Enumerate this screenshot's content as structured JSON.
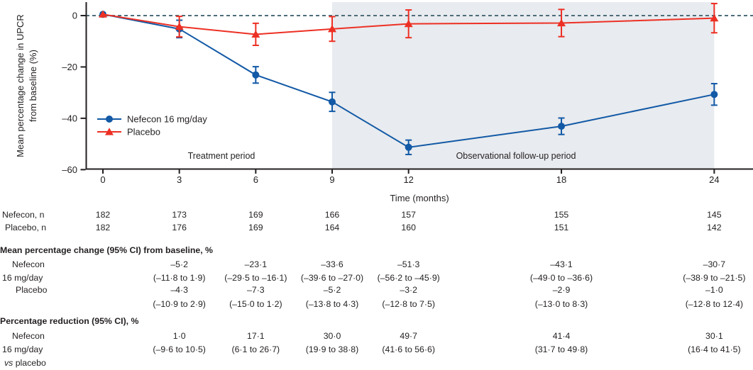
{
  "figure": {
    "y_axis": {
      "label_line1": "Mean percentage change in UPCR",
      "label_line2": "from baseline (%)",
      "ticks": [
        {
          "value": 0,
          "label": "0"
        },
        {
          "value": -20,
          "label": "–20"
        },
        {
          "value": -40,
          "label": "–40"
        },
        {
          "value": -60,
          "label": "–60"
        }
      ]
    },
    "x_axis": {
      "label": "Time (months)",
      "ticks": [
        {
          "value": 0,
          "label": "0"
        },
        {
          "value": 3,
          "label": "3"
        },
        {
          "value": 6,
          "label": "6"
        },
        {
          "value": 9,
          "label": "9"
        },
        {
          "value": 12,
          "label": "12"
        },
        {
          "value": 18,
          "label": "18"
        },
        {
          "value": 24,
          "label": "24"
        }
      ]
    },
    "legend": [
      {
        "name": "Nefecon 16 mg/day",
        "color": "#1259a6",
        "marker": "circle"
      },
      {
        "name": "Placebo",
        "color": "#ed3024",
        "marker": "triangle"
      }
    ],
    "period_labels": {
      "treatment": "Treatment period",
      "observational": "Observational follow-up period"
    },
    "shaded_region": {
      "from_month": 9,
      "to_month": 24,
      "color": "#e8ebef"
    },
    "zero_line_color": "#4e6d79",
    "axis_color": "#231f20"
  },
  "chart_data": {
    "type": "line",
    "x": [
      0,
      3,
      6,
      9,
      12,
      18,
      24
    ],
    "series": [
      {
        "name": "Nefecon 16 mg/day",
        "color": "#1259a6",
        "marker": "circle",
        "values": [
          0.5,
          -5.2,
          -23.1,
          -33.6,
          -51.3,
          -43.1,
          -30.7
        ],
        "err": [
          0,
          3.4,
          3.2,
          3.7,
          2.8,
          3.2,
          4.2
        ]
      },
      {
        "name": "Placebo",
        "color": "#ed3024",
        "marker": "triangle",
        "values": [
          0.5,
          -4.3,
          -7.3,
          -5.2,
          -3.2,
          -2.9,
          -1.0
        ],
        "err": [
          0,
          4.0,
          4.3,
          4.8,
          5.4,
          5.3,
          5.7
        ]
      }
    ],
    "title": "",
    "xlabel": "Time (months)",
    "ylabel": "Mean percentage change in UPCR from baseline (%)",
    "ylim": [
      -60,
      5
    ],
    "grid": false,
    "legend_position": "inside-left",
    "annotations": [
      "Treatment period",
      "Observational follow-up period"
    ]
  },
  "table": {
    "rows": [
      {
        "type": "n",
        "label": "Nefecon, n",
        "values": [
          "182",
          "173",
          "169",
          "166",
          "157",
          "155",
          "145"
        ]
      },
      {
        "type": "n",
        "label": "Placebo, n",
        "values": [
          "182",
          "176",
          "169",
          "164",
          "160",
          "151",
          "142"
        ]
      },
      {
        "type": "section",
        "label": "Mean percentage change (95% CI) from baseline, %"
      },
      {
        "type": "est",
        "label_lines": [
          "Nefecon",
          "16 mg/day"
        ],
        "est": [
          "",
          "–5·2",
          "–23·1",
          "–33·6",
          "–51·3",
          "–43·1",
          "–30·7"
        ],
        "ci": [
          "",
          "(–11·8 to 1·9)",
          "(–29·5 to –16·1)",
          "(–39·6 to –27·0)",
          "(–56·2 to –45·9)",
          "(–49·0 to –36·6)",
          "(–38·9 to –21·5)"
        ]
      },
      {
        "type": "est",
        "label_lines": [
          "Placebo"
        ],
        "est": [
          "",
          "–4·3",
          "–7·3",
          "–5·2",
          "–3·2",
          "–2·9",
          "–1·0"
        ],
        "ci": [
          "",
          "(–10·9 to 2·9)",
          "(–15·0 to 1·2)",
          "(–13·8 to 4·3)",
          "(–12·8 to 7·5)",
          "(–13·0 to 8·3)",
          "(–12·8 to 12·4)"
        ]
      },
      {
        "type": "section",
        "label": "Percentage reduction (95% CI), %"
      },
      {
        "type": "est",
        "label_lines": [
          "Nefecon",
          "16 mg/day",
          "vs placebo"
        ],
        "est": [
          "",
          "1·0",
          "17·1",
          "30·0",
          "49·7",
          "41·4",
          "30·1"
        ],
        "ci": [
          "",
          "(–9·6 to 10·5)",
          "(6·1 to 26·7)",
          "(19·9 to 38·8)",
          "(41·6 to 56·6)",
          "(31·7 to 49·8)",
          "(16·4 to 41·5)"
        ]
      }
    ]
  }
}
